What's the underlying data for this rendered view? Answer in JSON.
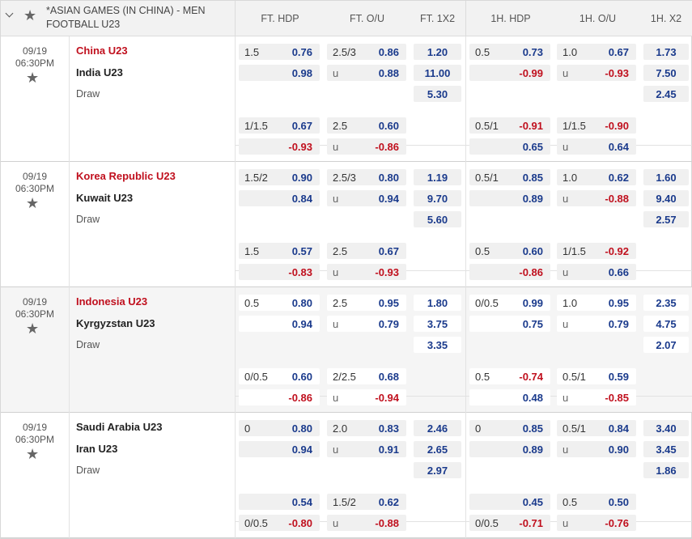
{
  "header": {
    "league": "*ASIAN GAMES (IN CHINA) - MEN FOOTBALL U23",
    "columns": [
      "FT. HDP",
      "FT. O/U",
      "FT. 1X2",
      "1H. HDP",
      "1H. O/U",
      "1H. X2"
    ]
  },
  "matches": [
    {
      "date": "09/19",
      "time": "06:30PM",
      "home": "China U23",
      "away": "India U23",
      "draw": "Draw",
      "fav": "home",
      "main": {
        "ft_hdp": {
          "line": "1.5",
          "home": "0.76",
          "away": "0.98"
        },
        "ft_ou": {
          "line": "2.5/3",
          "under_label": "u",
          "over": "0.86",
          "under": "0.88"
        },
        "ft_1x2": [
          "1.20",
          "11.00",
          "5.30"
        ],
        "h1_hdp": {
          "line": "0.5",
          "home": "0.73",
          "away": "-0.99"
        },
        "h1_ou": {
          "line": "1.0",
          "under_label": "u",
          "over": "0.67",
          "under": "-0.93"
        },
        "h1_1x2": [
          "1.73",
          "7.50",
          "2.45"
        ]
      },
      "alt": {
        "ft_hdp": {
          "line": "1/1.5",
          "home": "0.67",
          "away": "-0.93"
        },
        "ft_ou": {
          "line": "2.5",
          "under_label": "u",
          "over": "0.60",
          "under": "-0.86"
        },
        "h1_hdp": {
          "line": "0.5/1",
          "home": "-0.91",
          "away": "0.65"
        },
        "h1_ou": {
          "line": "1/1.5",
          "under_label": "u",
          "over": "-0.90",
          "under": "0.64"
        }
      }
    },
    {
      "date": "09/19",
      "time": "06:30PM",
      "home": "Korea Republic U23",
      "away": "Kuwait U23",
      "draw": "Draw",
      "fav": "home",
      "main": {
        "ft_hdp": {
          "line": "1.5/2",
          "home": "0.90",
          "away": "0.84"
        },
        "ft_ou": {
          "line": "2.5/3",
          "under_label": "u",
          "over": "0.80",
          "under": "0.94"
        },
        "ft_1x2": [
          "1.19",
          "9.70",
          "5.60"
        ],
        "h1_hdp": {
          "line": "0.5/1",
          "home": "0.85",
          "away": "0.89"
        },
        "h1_ou": {
          "line": "1.0",
          "under_label": "u",
          "over": "0.62",
          "under": "-0.88"
        },
        "h1_1x2": [
          "1.60",
          "9.40",
          "2.57"
        ]
      },
      "alt": {
        "ft_hdp": {
          "line": "1.5",
          "home": "0.57",
          "away": "-0.83"
        },
        "ft_ou": {
          "line": "2.5",
          "under_label": "u",
          "over": "0.67",
          "under": "-0.93"
        },
        "h1_hdp": {
          "line": "0.5",
          "home": "0.60",
          "away": "-0.86"
        },
        "h1_ou": {
          "line": "1/1.5",
          "under_label": "u",
          "over": "-0.92",
          "under": "0.66"
        }
      }
    },
    {
      "date": "09/19",
      "time": "06:30PM",
      "home": "Indonesia U23",
      "away": "Kyrgyzstan U23",
      "draw": "Draw",
      "fav": "home",
      "main": {
        "ft_hdp": {
          "line": "0.5",
          "home": "0.80",
          "away": "0.94"
        },
        "ft_ou": {
          "line": "2.5",
          "under_label": "u",
          "over": "0.95",
          "under": "0.79"
        },
        "ft_1x2": [
          "1.80",
          "3.75",
          "3.35"
        ],
        "h1_hdp": {
          "line": "0/0.5",
          "home": "0.99",
          "away": "0.75"
        },
        "h1_ou": {
          "line": "1.0",
          "under_label": "u",
          "over": "0.95",
          "under": "0.79"
        },
        "h1_1x2": [
          "2.35",
          "4.75",
          "2.07"
        ]
      },
      "alt": {
        "ft_hdp": {
          "line": "0/0.5",
          "home": "0.60",
          "away": "-0.86"
        },
        "ft_ou": {
          "line": "2/2.5",
          "under_label": "u",
          "over": "0.68",
          "under": "-0.94"
        },
        "h1_hdp": {
          "line": "0.5",
          "home": "-0.74",
          "away": "0.48"
        },
        "h1_ou": {
          "line": "0.5/1",
          "under_label": "u",
          "over": "0.59",
          "under": "-0.85"
        }
      }
    },
    {
      "date": "09/19",
      "time": "06:30PM",
      "home": "Saudi Arabia U23",
      "away": "Iran U23",
      "draw": "Draw",
      "fav": "none",
      "main": {
        "ft_hdp": {
          "line": "0",
          "home": "0.80",
          "away": "0.94"
        },
        "ft_ou": {
          "line": "2.0",
          "under_label": "u",
          "over": "0.83",
          "under": "0.91"
        },
        "ft_1x2": [
          "2.46",
          "2.65",
          "2.97"
        ],
        "h1_hdp": {
          "line": "0",
          "home": "0.85",
          "away": "0.89"
        },
        "h1_ou": {
          "line": "0.5/1",
          "under_label": "u",
          "over": "0.84",
          "under": "0.90"
        },
        "h1_1x2": [
          "3.40",
          "3.45",
          "1.86"
        ]
      },
      "alt": {
        "ft_hdp": {
          "away_line": "0/0.5",
          "home": "0.54",
          "away": "-0.80"
        },
        "ft_ou": {
          "line": "1.5/2",
          "under_label": "u",
          "over": "0.62",
          "under": "-0.88"
        },
        "h1_hdp": {
          "away_line": "0/0.5",
          "home": "0.45",
          "away": "-0.71"
        },
        "h1_ou": {
          "line": "0.5",
          "under_label": "u",
          "over": "0.50",
          "under": "-0.76"
        }
      }
    }
  ],
  "colors": {
    "favorite": "#c0101e",
    "odds": "#1a3a8c",
    "negative": "#c0101e",
    "header_bg": "#f2f2f2"
  },
  "icons": {
    "collapse": "chevron-down-icon",
    "favorite": "star-icon"
  }
}
